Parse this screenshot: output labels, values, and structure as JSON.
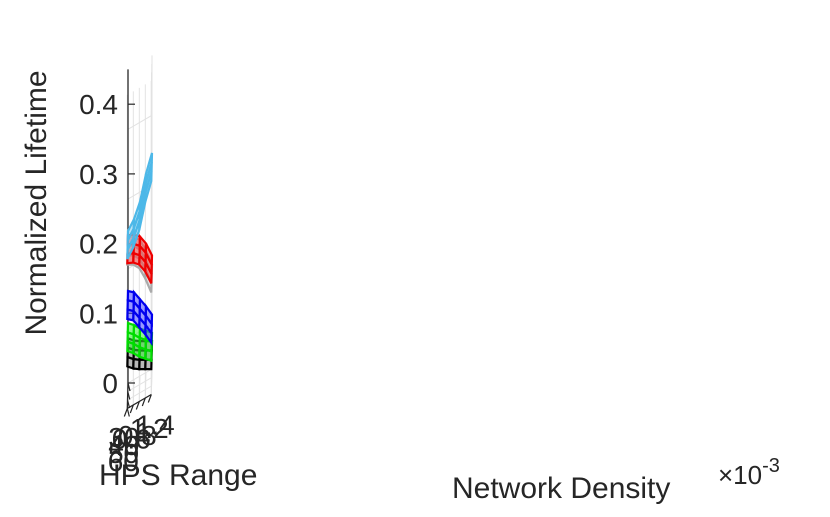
{
  "chart_data": {
    "type": "surface",
    "zlabel": "Normalized Lifetime",
    "xlabel": "HPS Range",
    "ylabel": "Network Density",
    "y_exponent": "×10",
    "y_exponent_power": "-3",
    "x_ticks": [
      "30",
      "40",
      "50",
      "60"
    ],
    "y_ticks": [
      "0.6",
      "0.8",
      "1",
      "1.2",
      "1.4"
    ],
    "z_ticks": [
      "0",
      "0.1",
      "0.2",
      "0.3",
      "0.4"
    ],
    "xlim": [
      30,
      60
    ],
    "ylim": [
      0.6,
      1.4
    ],
    "zlim": [
      0,
      0.45
    ],
    "grid": true,
    "series": [
      {
        "color": "#000000",
        "fill": "#808080",
        "values": [
          0.064,
          0.056,
          0.05,
          0.045,
          0.04
        ]
      },
      {
        "color": "#00dd00",
        "fill": "#33ee33",
        "values": [
          0.086,
          0.078,
          0.068,
          0.06,
          0.052
        ]
      },
      {
        "color": "#aaaaaa",
        "fill": "#cccccc",
        "values": [
          0.21,
          0.205,
          0.195,
          0.175,
          0.15
        ]
      },
      {
        "color": "#0000ee",
        "fill": "#4444ff",
        "values": [
          0.132,
          0.125,
          0.11,
          0.095,
          0.078
        ]
      },
      {
        "color": "#ee0000",
        "fill": "#ff4444",
        "values": [
          0.212,
          0.208,
          0.2,
          0.185,
          0.163
        ]
      },
      {
        "color": "#4db8e8",
        "fill": "#87ceeb",
        "values": [
          0.218,
          0.23,
          0.25,
          0.285,
          0.31
        ]
      }
    ]
  }
}
